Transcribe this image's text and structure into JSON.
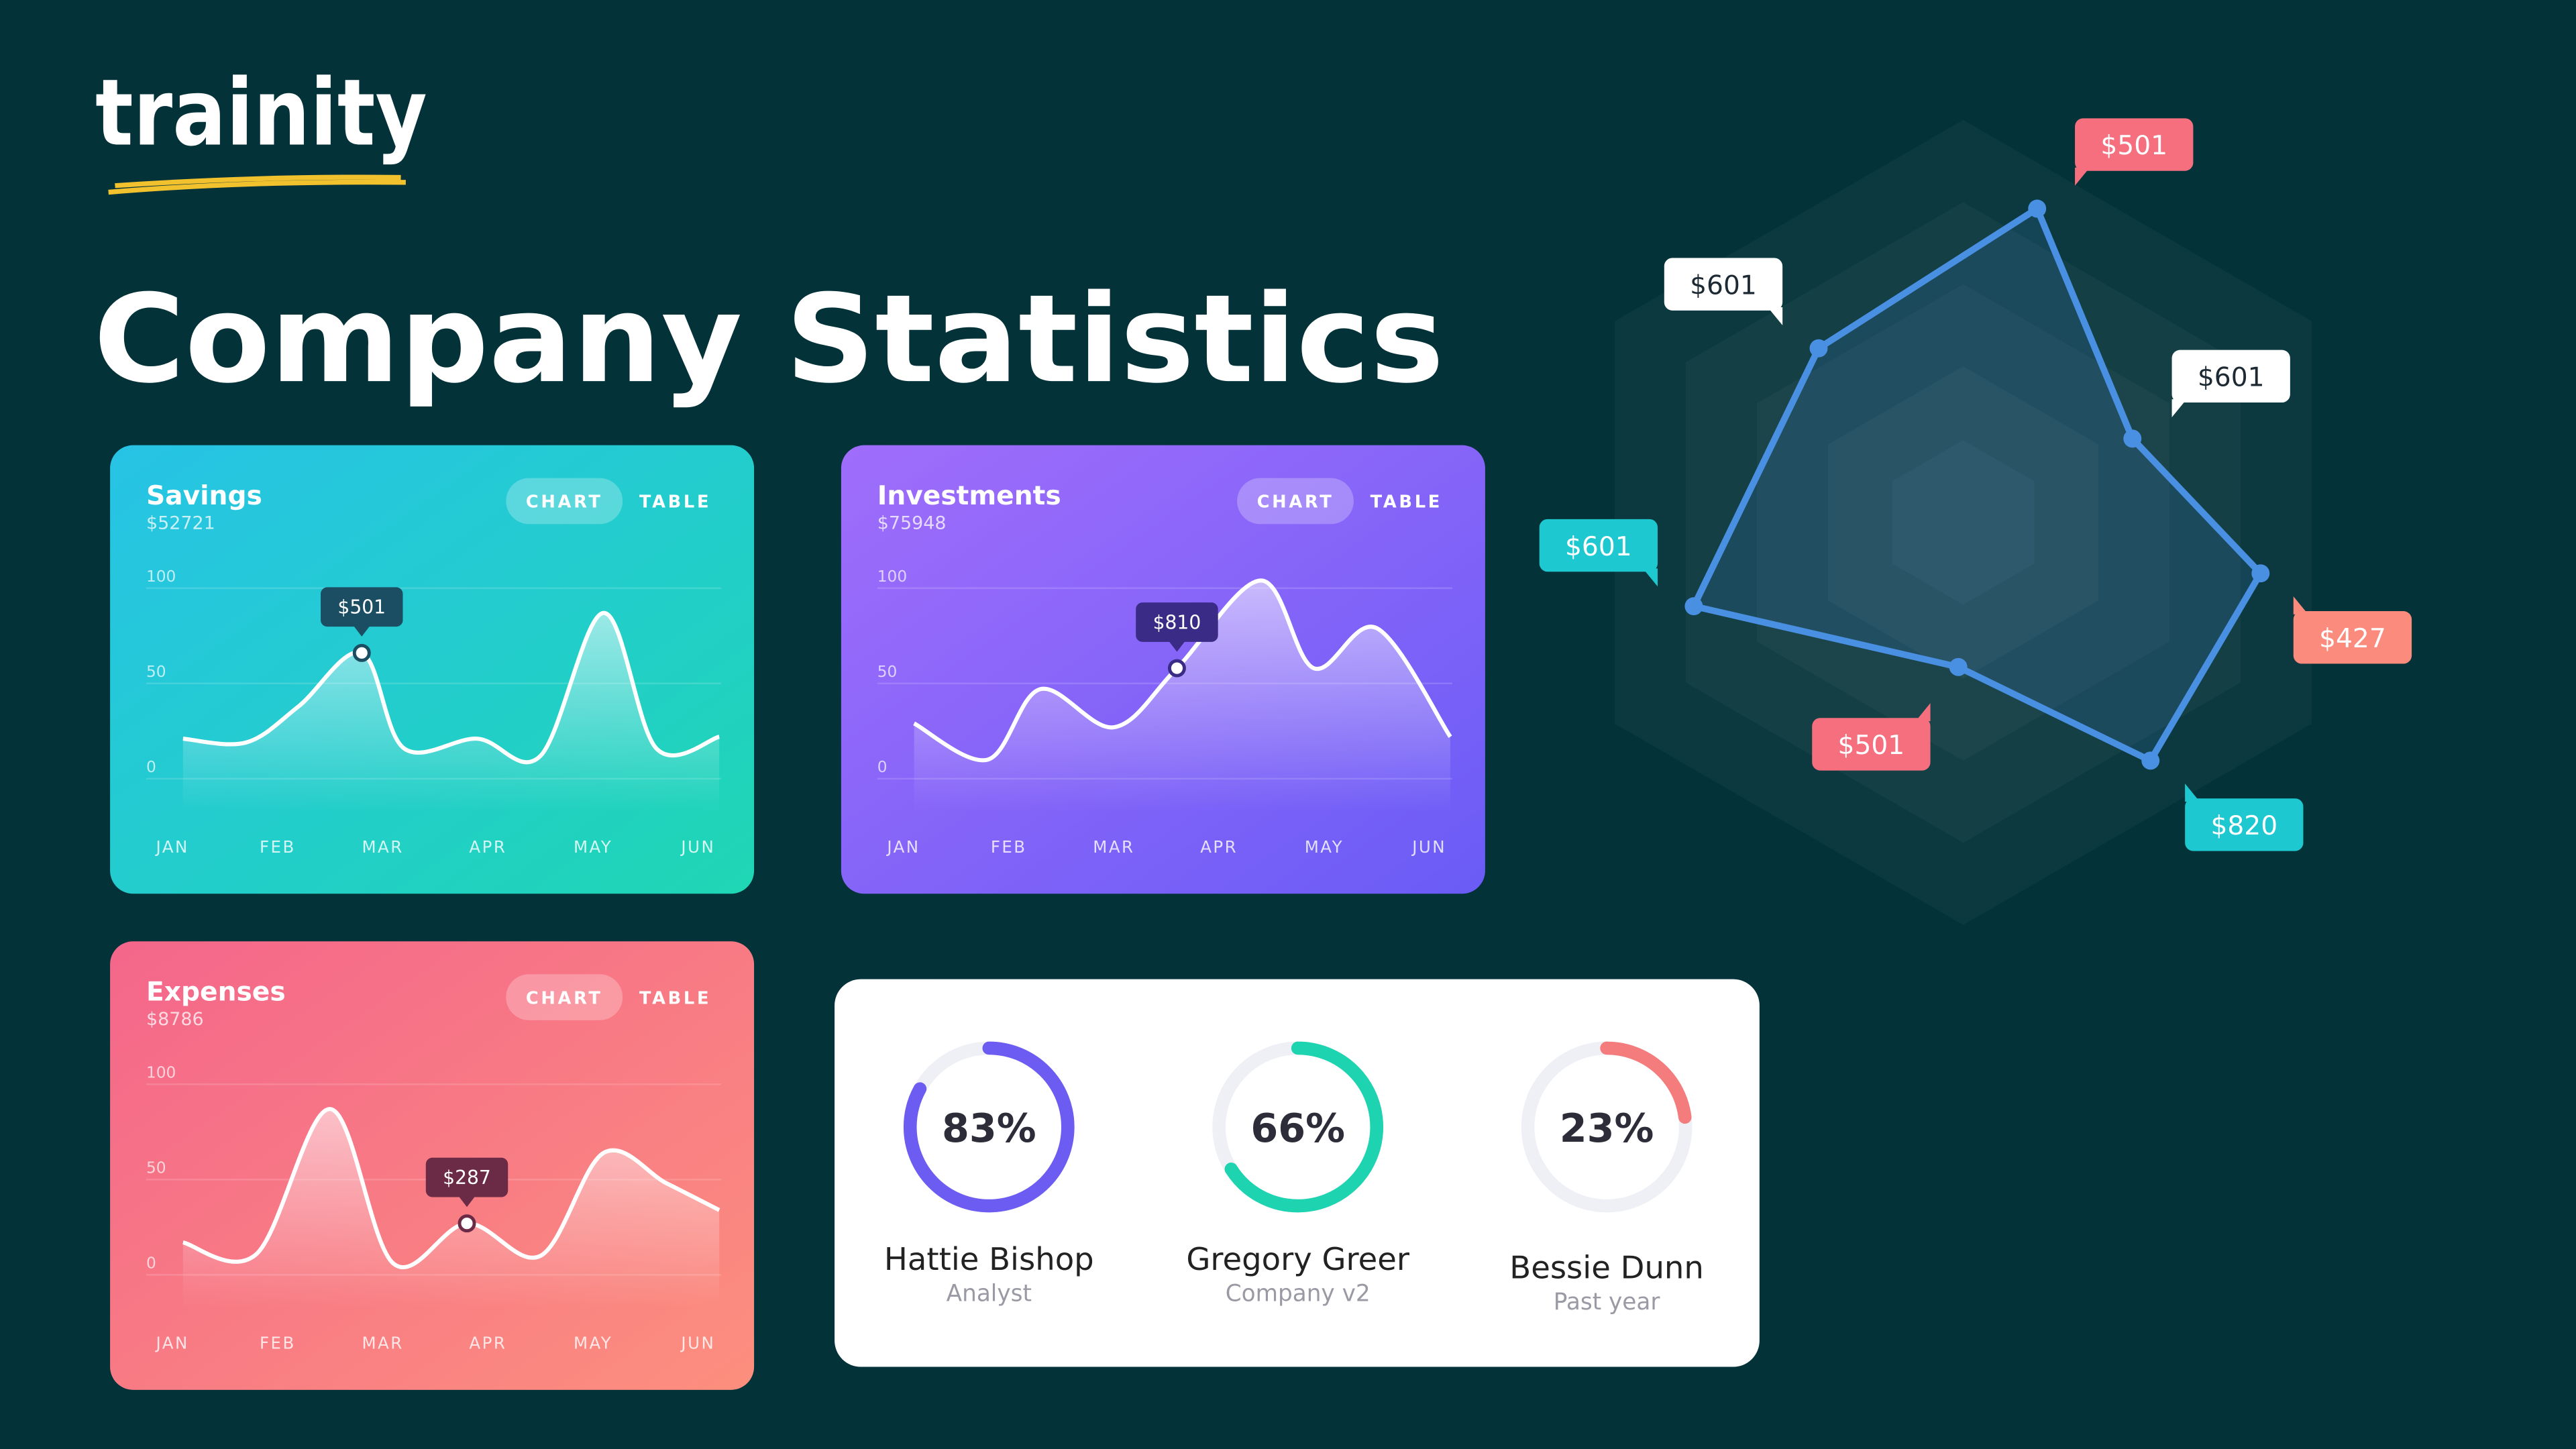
{
  "brand": "trainity",
  "heading": "Company Statistics",
  "chart_data": [
    {
      "type": "area",
      "title": "Savings",
      "subtitle": "$52721",
      "tabs": [
        "CHART",
        "TABLE"
      ],
      "gradient": [
        "#27c3e6",
        "#1fd6b4"
      ],
      "x": [
        0.1,
        0.7,
        1.2,
        1.8,
        2.2,
        2.9,
        3.5,
        4.1,
        4.6,
        5.2
      ],
      "values": [
        21,
        19,
        38,
        66,
        16,
        21,
        12,
        87,
        16,
        22
      ],
      "xlim": [
        0,
        5
      ],
      "xticks": [
        {
          "value": 0,
          "label": "JAN"
        },
        {
          "value": 1,
          "label": "FEB"
        },
        {
          "value": 2,
          "label": "MAR"
        },
        {
          "value": 3,
          "label": "APR"
        },
        {
          "value": 4,
          "label": "MAY"
        },
        {
          "value": 5,
          "label": "JUN"
        }
      ],
      "ylim": [
        0,
        100
      ],
      "yticks": [
        0,
        50,
        100
      ],
      "grid": true,
      "annotation": {
        "x": 1.8,
        "y": 66,
        "text": "$501",
        "color": "#1b4e63"
      }
    },
    {
      "type": "area",
      "title": "Investments",
      "subtitle": "$75948",
      "tabs": [
        "CHART",
        "TABLE"
      ],
      "gradient": [
        "#a06dfb",
        "#6a5cf6"
      ],
      "x": [
        0.1,
        0.8,
        1.3,
        2.0,
        2.6,
        3.4,
        3.9,
        4.5,
        5.2
      ],
      "values": [
        29,
        10,
        47,
        27,
        58,
        104,
        58,
        79,
        22
      ],
      "xlim": [
        0,
        5
      ],
      "xticks": [
        {
          "value": 0,
          "label": "JAN"
        },
        {
          "value": 1,
          "label": "FEB"
        },
        {
          "value": 2,
          "label": "MAR"
        },
        {
          "value": 3,
          "label": "APR"
        },
        {
          "value": 4,
          "label": "MAY"
        },
        {
          "value": 5,
          "label": "JUN"
        }
      ],
      "ylim": [
        0,
        100
      ],
      "yticks": [
        0,
        50,
        100
      ],
      "grid": true,
      "annotation": {
        "x": 2.6,
        "y": 58,
        "text": "$810",
        "color": "#3a2b86"
      }
    },
    {
      "type": "area",
      "title": "Expenses",
      "subtitle": "$8786",
      "tabs": [
        "CHART",
        "TABLE"
      ],
      "gradient": [
        "#f4668b",
        "#fc8f7e"
      ],
      "x": [
        0.1,
        0.8,
        1.5,
        2.1,
        2.8,
        3.5,
        4.1,
        4.7,
        5.2
      ],
      "values": [
        17,
        11,
        87,
        6,
        27,
        10,
        64,
        48,
        34
      ],
      "xlim": [
        0,
        5
      ],
      "xticks": [
        {
          "value": 0,
          "label": "JAN"
        },
        {
          "value": 1,
          "label": "FEB"
        },
        {
          "value": 2,
          "label": "MAR"
        },
        {
          "value": 3,
          "label": "APR"
        },
        {
          "value": 4,
          "label": "MAY"
        },
        {
          "value": 5,
          "label": "JUN"
        }
      ],
      "ylim": [
        0,
        100
      ],
      "yticks": [
        0,
        50,
        100
      ],
      "grid": true,
      "annotation": {
        "x": 2.8,
        "y": 27,
        "text": "$287",
        "color": "#6b2a45"
      }
    },
    {
      "type": "donut",
      "categories": [
        "Hattie Bishop",
        "Gregory Greer",
        "Bessie Dunn"
      ],
      "subtitles": [
        "Analyst",
        "Company v2",
        "Past year"
      ],
      "values": [
        83,
        66,
        23
      ],
      "value_labels": [
        "83%",
        "66%",
        "23%"
      ],
      "colors": [
        "#6c5cf2",
        "#1dd3b0",
        "#f47c7c"
      ]
    },
    {
      "type": "radar",
      "labels": [
        "$501",
        "$601",
        "$427",
        "$820",
        "$501",
        "$601",
        "$601"
      ],
      "colors": [
        "#f56f7f",
        "#ffffff",
        "#fb8b7c",
        "#1ec8d0",
        "#f56f7f",
        "#1ec8d0",
        "#ffffff"
      ]
    }
  ]
}
